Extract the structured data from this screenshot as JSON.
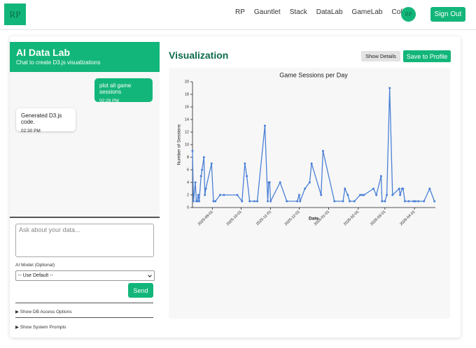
{
  "nav": {
    "logo": "RP",
    "links": [
      "RP",
      "Gauntlet",
      "Stack",
      "DataLab",
      "GameLab",
      "Collect"
    ],
    "avatar": "RP",
    "sign_out": "Sign Out"
  },
  "chat": {
    "title": "AI Data Lab",
    "subtitle": "Chat to create D3.js visualizations",
    "messages": [
      {
        "text": "plot all game sessions",
        "time": "02:29 PM"
      },
      {
        "text": "Generated D3.js code.",
        "time": "02:30 PM"
      }
    ],
    "input_placeholder": "Ask about your data...",
    "model_label": "AI Model (Optional)",
    "model_option": "-- Use Default --",
    "send": "Send",
    "db_toggle": "▶ Show DB Access Options",
    "prompts_toggle": "▶ Show System Prompts"
  },
  "panel": {
    "title": "Visualization",
    "show_details": "Show Details",
    "save": "Save to Profile"
  },
  "chart_data": {
    "type": "line",
    "title": "Game Sessions per Day",
    "x_label": "Date",
    "y_label": "Number of Sessions",
    "color": "#4a80d6",
    "x": [
      "2025-08-11",
      "2025-08-12",
      "2025-08-14",
      "2025-08-15",
      "2025-08-16",
      "2025-08-17",
      "2025-08-18",
      "2025-08-20",
      "2025-08-21",
      "2025-08-23",
      "2025-08-24",
      "2025-08-25",
      "2025-08-31",
      "2025-09-02",
      "2025-09-04",
      "2025-09-09",
      "2025-09-13",
      "2025-09-27",
      "2025-10-02",
      "2025-10-05",
      "2025-10-07",
      "2025-10-10",
      "2025-10-15",
      "2025-10-18",
      "2025-10-26",
      "2025-10-29",
      "2025-10-30",
      "2025-10-31",
      "2025-11-01",
      "2025-11-11",
      "2025-11-18",
      "2025-11-29",
      "2025-12-01",
      "2025-12-02",
      "2025-12-07",
      "2025-12-12",
      "2025-12-14",
      "2025-12-24",
      "2025-12-26",
      "2026-01-07",
      "2026-01-16",
      "2026-01-18",
      "2026-01-21",
      "2026-01-23",
      "2026-01-28",
      "2026-02-03",
      "2026-02-05",
      "2026-02-07",
      "2026-02-17",
      "2026-02-20",
      "2026-02-25",
      "2026-02-26",
      "2026-03-01",
      "2026-03-03",
      "2026-03-06",
      "2026-03-09",
      "2026-03-16",
      "2026-03-17",
      "2026-03-19",
      "2026-03-20",
      "2026-03-22",
      "2026-03-26",
      "2026-03-31",
      "2026-04-02",
      "2026-04-05",
      "2026-04-11",
      "2026-04-17",
      "2026-04-22"
    ],
    "values": [
      9,
      1,
      4,
      1,
      1,
      2,
      1,
      5,
      6,
      8,
      2,
      3,
      7,
      1,
      1,
      2,
      2,
      2,
      1,
      7,
      5,
      1,
      1,
      1,
      13,
      1,
      4,
      4,
      1,
      4,
      1,
      1,
      2,
      1,
      3,
      4,
      7,
      2,
      9,
      1,
      1,
      3,
      2,
      1,
      1,
      2,
      2,
      2,
      3,
      2,
      5,
      1,
      1,
      2,
      19,
      2,
      3,
      2,
      3,
      3,
      1,
      1,
      1,
      1,
      1,
      1,
      3,
      1
    ],
    "xlim": [
      "2025-08-11",
      "2026-04-23"
    ],
    "xticks": [
      "2025-09-01",
      "2025-10-01",
      "2025-11-01",
      "2025-12-01",
      "2026-01-01",
      "2026-02-01",
      "2026-03-01",
      "2026-04-01"
    ],
    "ylim": [
      0,
      20
    ],
    "yticks": [
      0,
      2,
      4,
      6,
      8,
      10,
      12,
      14,
      16,
      18,
      20
    ],
    "grid": false
  }
}
